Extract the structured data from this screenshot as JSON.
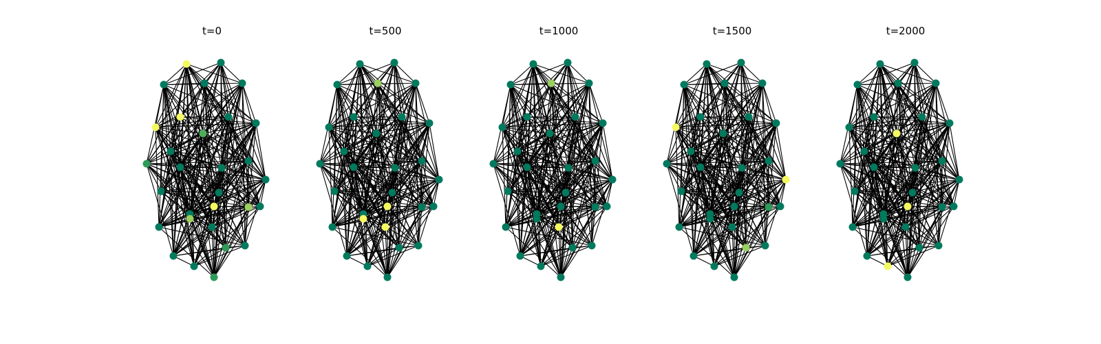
{
  "panels": [
    {
      "title": "t=0"
    },
    {
      "title": "t=500"
    },
    {
      "title": "t=1000"
    },
    {
      "title": "t=1500"
    },
    {
      "title": "t=2000"
    }
  ],
  "palette": {
    "low": "#007a5e",
    "mid": "#2e9b59",
    "midhigh": "#4fae59",
    "high": "#9bcf5f",
    "top": "#f4f961",
    "edge": "#000000"
  },
  "node_levels": [
    [
      "low",
      "top",
      "low",
      "low",
      "low",
      "top",
      "top",
      "midhigh",
      "low",
      "low",
      "mid",
      "low",
      "low",
      "low",
      "low",
      "low",
      "high",
      "top",
      "low",
      "low",
      "low",
      "low",
      "mid",
      "mid",
      "low",
      "high",
      "low",
      "low",
      "low",
      "low"
    ],
    [
      "low",
      "low",
      "high",
      "low",
      "low",
      "low",
      "low",
      "low",
      "low",
      "low",
      "low",
      "low",
      "low",
      "low",
      "low",
      "low",
      "low",
      "top",
      "low",
      "low",
      "low",
      "low",
      "low",
      "low",
      "low",
      "top",
      "top",
      "low",
      "low",
      "low"
    ],
    [
      "low",
      "low",
      "high",
      "low",
      "low",
      "low",
      "low",
      "low",
      "low",
      "low",
      "low",
      "low",
      "low",
      "low",
      "low",
      "low",
      "low",
      "low",
      "low",
      "low",
      "low",
      "low",
      "low",
      "low",
      "low",
      "low",
      "top",
      "low",
      "low",
      "low"
    ],
    [
      "low",
      "low",
      "low",
      "low",
      "low",
      "top",
      "low",
      "low",
      "low",
      "low",
      "low",
      "low",
      "low",
      "low",
      "top",
      "low",
      "mid",
      "low",
      "low",
      "low",
      "low",
      "low",
      "low",
      "high",
      "low",
      "low",
      "low",
      "low",
      "low",
      "low"
    ],
    [
      "low",
      "low",
      "low",
      "low",
      "low",
      "low",
      "low",
      "top",
      "low",
      "low",
      "low",
      "low",
      "low",
      "low",
      "low",
      "low",
      "low",
      "top",
      "low",
      "low",
      "low",
      "top",
      "low",
      "low",
      "low",
      "low",
      "low",
      "low",
      "low",
      "low"
    ]
  ]
}
